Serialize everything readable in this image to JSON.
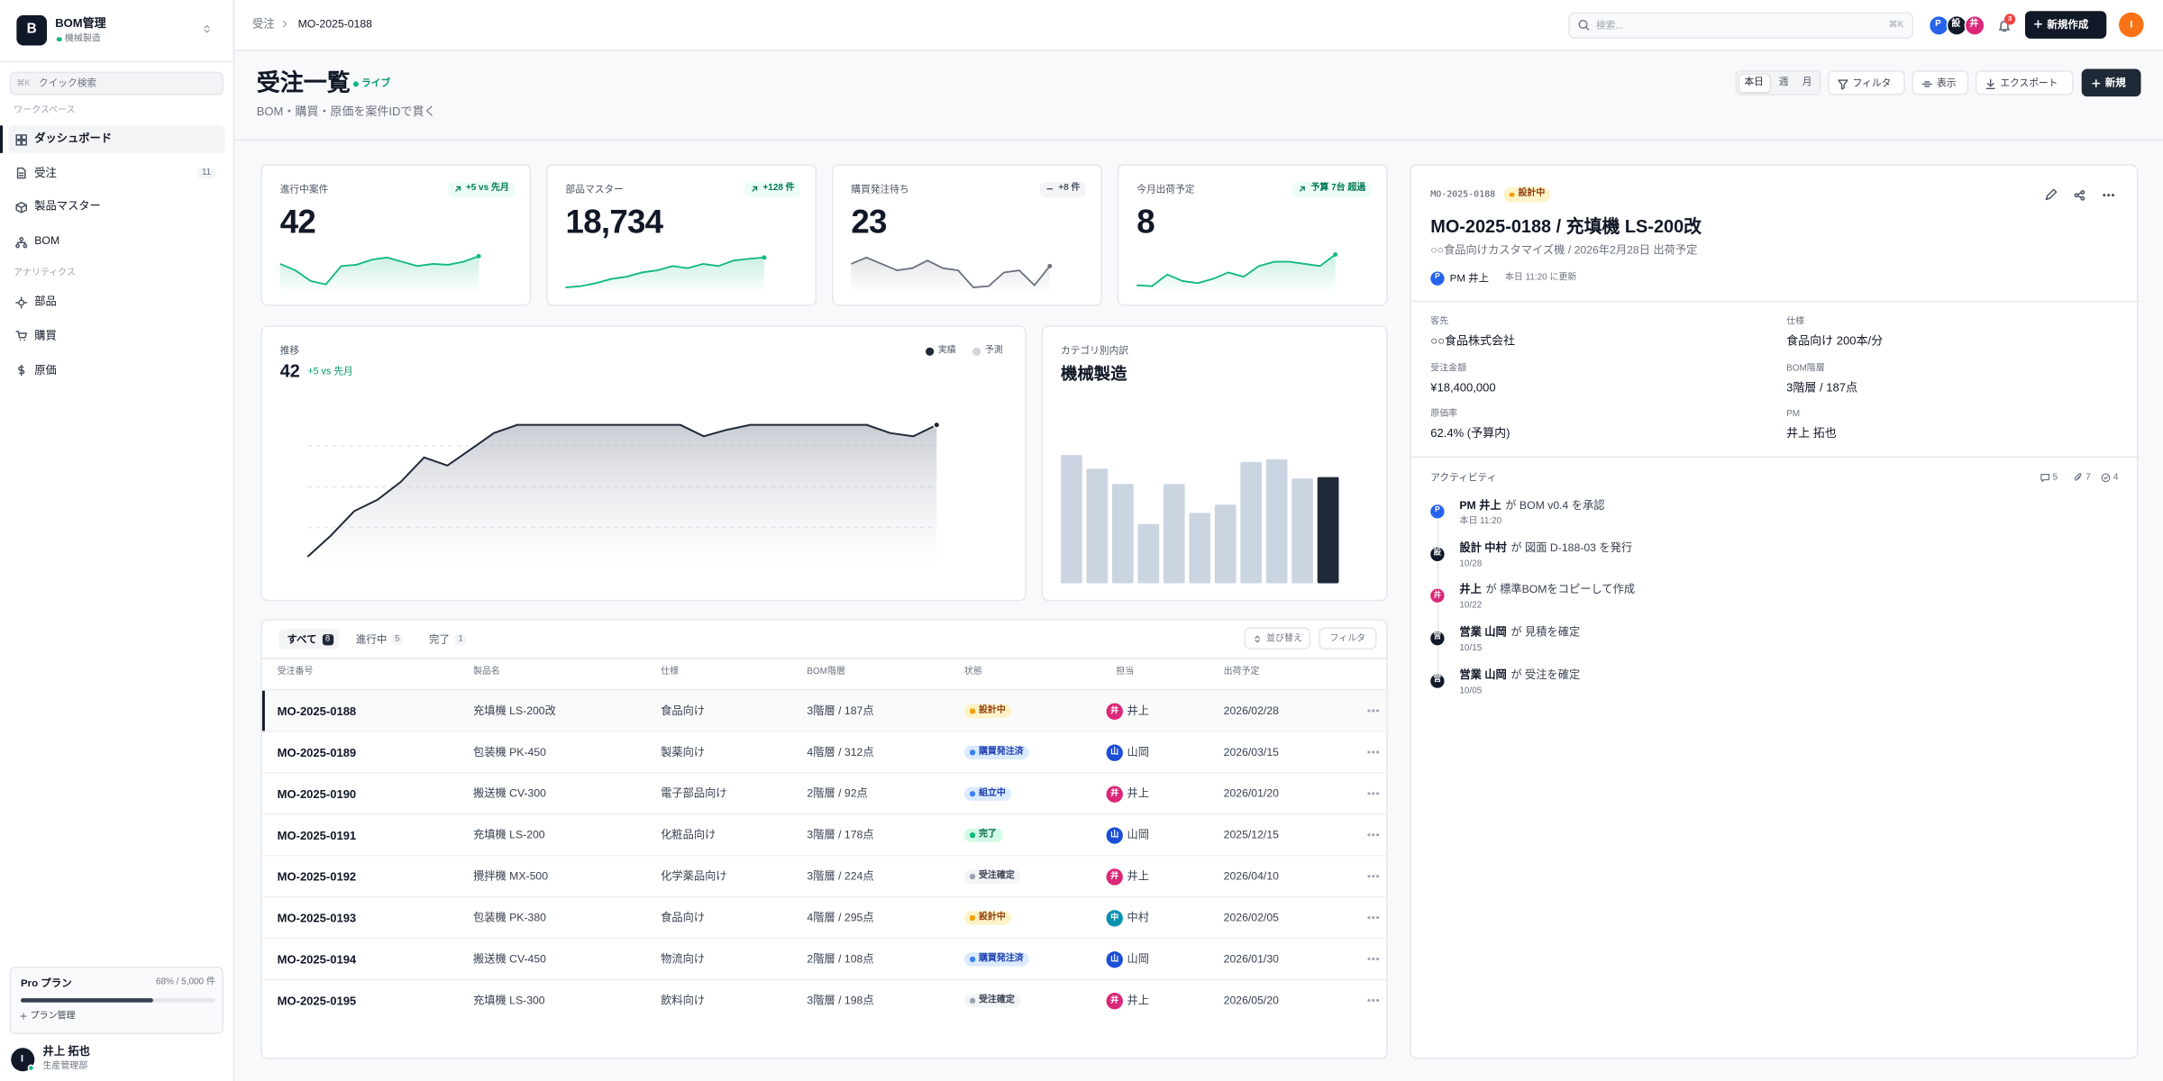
{
  "sidebar": {
    "logo": "B",
    "app_name": "BOM管理",
    "org": "機械製造",
    "quick_search": {
      "shortcut": "⌘K",
      "placeholder": "クイック検索"
    },
    "sections": [
      {
        "label": "ワークスペース",
        "items": [
          {
            "label": "ダッシュボード",
            "active": true
          },
          {
            "label": "受注",
            "badge": 11
          },
          {
            "label": "製品マスター"
          },
          {
            "label": "BOM"
          }
        ]
      },
      {
        "label": "アナリティクス",
        "items": [
          {
            "label": "部品"
          },
          {
            "label": "購買"
          },
          {
            "label": "原価"
          }
        ]
      }
    ],
    "plan": {
      "name": "Pro プラン",
      "usage": "68% / 5,000 件",
      "percent": 68,
      "manage": "プラン管理"
    },
    "user": {
      "initial": "I",
      "name": "井上 拓也",
      "dept": "生産管理部"
    }
  },
  "topbar": {
    "breadcrumb": [
      "受注",
      "MO-2025-0188"
    ],
    "search": {
      "placeholder": "検索...",
      "shortcut": "⌘K"
    },
    "avatars": [
      {
        "initial": "P",
        "color": "#2563eb"
      },
      {
        "initial": "設",
        "color": "#111827"
      },
      {
        "initial": "井",
        "color": "#db2777"
      }
    ],
    "notifications": 3,
    "create_button": "新規作成",
    "user_initial": "I"
  },
  "header": {
    "title": "受注一覧",
    "live": "ライブ",
    "subtitle": "BOM・購買・原価を案件IDで貫く",
    "periods": [
      {
        "label": "本日",
        "active": true
      },
      {
        "label": "週"
      },
      {
        "label": "月"
      }
    ],
    "buttons": [
      "フィルタ",
      "表示",
      "エクスポート"
    ],
    "new_button": "新規"
  },
  "kpis": [
    {
      "label": "進行中案件",
      "value": 42,
      "delta": "+5 vs 先月",
      "trend": "up",
      "spark": [
        60,
        45,
        20,
        12,
        55,
        58,
        70,
        75,
        65,
        55,
        60,
        58,
        65,
        78
      ]
    },
    {
      "label": "部品マスター",
      "value": "18,734",
      "delta": "+128 件",
      "trend": "up",
      "spark": [
        5,
        8,
        15,
        25,
        30,
        40,
        45,
        55,
        50,
        60,
        55,
        68,
        72,
        75
      ]
    },
    {
      "label": "購買発注待ち",
      "value": 23,
      "delta": "+8 件",
      "trend": "flat",
      "spark": [
        60,
        75,
        60,
        45,
        50,
        68,
        50,
        45,
        5,
        8,
        40,
        45,
        10,
        55
      ]
    },
    {
      "label": "今月出荷予定",
      "value": 8,
      "delta": "予算 7台 超過",
      "trend": "up",
      "spark": [
        10,
        8,
        35,
        20,
        15,
        25,
        40,
        30,
        55,
        65,
        65,
        60,
        55,
        82
      ]
    }
  ],
  "trend_chart": {
    "type": "area",
    "label": "推移",
    "value": 42,
    "delta": "+5 vs 先月",
    "legend": [
      {
        "name": "実績",
        "color": "#1f2937"
      },
      {
        "name": "予測",
        "color": "#d1d5db"
      }
    ],
    "values": [
      7,
      20,
      35,
      42,
      53,
      68,
      63,
      73,
      83,
      88,
      88,
      88,
      88,
      88,
      88,
      88,
      88,
      81,
      85,
      88,
      88,
      88,
      88,
      88,
      88,
      83,
      81,
      88
    ],
    "ylim": [
      0,
      100
    ],
    "yticks": [
      25,
      50,
      75
    ],
    "grid": true
  },
  "category_chart": {
    "type": "bar",
    "label": "カテゴリ別内訳",
    "value": "機械製造",
    "values": [
      93,
      83,
      72,
      43,
      72,
      51,
      57,
      88,
      90,
      76,
      77
    ],
    "ylim": [
      0,
      100
    ],
    "color": "#cbd5e1",
    "highlight_color": "#1f2937",
    "highlight_index": 10
  },
  "table": {
    "tabs": [
      {
        "label": "すべて",
        "count": 8,
        "active": true
      },
      {
        "label": "進行中",
        "count": 5
      },
      {
        "label": "完了",
        "count": 1
      }
    ],
    "actions": [
      "並び替え",
      "フィルタ"
    ],
    "columns": [
      "受注番号",
      "製品名",
      "仕様",
      "BOM階層",
      "状態",
      "担当",
      "出荷予定"
    ],
    "selected": 0,
    "status_styles": {
      "設計中": {
        "bg": "#fef3c7",
        "fg": "#92400e",
        "dot": "#f59e0b"
      },
      "購買発注済": {
        "bg": "#dbeafe",
        "fg": "#1e40af",
        "dot": "#3b82f6"
      },
      "組立中": {
        "bg": "#dbeafe",
        "fg": "#1e40af",
        "dot": "#3b82f6"
      },
      "完了": {
        "bg": "#d1fae5",
        "fg": "#065f46",
        "dot": "#10b981"
      },
      "受注確定": {
        "bg": "#f3f4f6",
        "fg": "#374151",
        "dot": "#9ca3af"
      }
    },
    "rows": [
      {
        "id": "MO-2025-0188",
        "product": "充填機 LS-200改",
        "spec": "食品向け",
        "bom": "3階層 / 187点",
        "status": "設計中",
        "owner_initial": "井",
        "owner_color": "#db2777",
        "owner": "井上",
        "ship": "2026/02/28"
      },
      {
        "id": "MO-2025-0189",
        "product": "包装機 PK-450",
        "spec": "製薬向け",
        "bom": "4階層 / 312点",
        "status": "購買発注済",
        "owner_initial": "山",
        "owner_color": "#1d4ed8",
        "owner": "山岡",
        "ship": "2026/03/15"
      },
      {
        "id": "MO-2025-0190",
        "product": "搬送機 CV-300",
        "spec": "電子部品向け",
        "bom": "2階層 / 92点",
        "status": "組立中",
        "owner_initial": "井",
        "owner_color": "#db2777",
        "owner": "井上",
        "ship": "2026/01/20"
      },
      {
        "id": "MO-2025-0191",
        "product": "充填機 LS-200",
        "spec": "化粧品向け",
        "bom": "3階層 / 178点",
        "status": "完了",
        "owner_initial": "山",
        "owner_color": "#1d4ed8",
        "owner": "山岡",
        "ship": "2025/12/15"
      },
      {
        "id": "MO-2025-0192",
        "product": "攪拌機 MX-500",
        "spec": "化学薬品向け",
        "bom": "3階層 / 224点",
        "status": "受注確定",
        "owner_initial": "井",
        "owner_color": "#db2777",
        "owner": "井上",
        "ship": "2026/04/10"
      },
      {
        "id": "MO-2025-0193",
        "product": "包装機 PK-380",
        "spec": "食品向け",
        "bom": "4階層 / 295点",
        "status": "設計中",
        "owner_initial": "中",
        "owner_color": "#0891b2",
        "owner": "中村",
        "ship": "2026/02/05"
      },
      {
        "id": "MO-2025-0194",
        "product": "搬送機 CV-450",
        "spec": "物流向け",
        "bom": "2階層 / 108点",
        "status": "購買発注済",
        "owner_initial": "山",
        "owner_color": "#1d4ed8",
        "owner": "山岡",
        "ship": "2026/01/30"
      },
      {
        "id": "MO-2025-0195",
        "product": "充填機 LS-300",
        "spec": "飲料向け",
        "bom": "3階層 / 198点",
        "status": "受注確定",
        "owner_initial": "井",
        "owner_color": "#db2777",
        "owner": "井上",
        "ship": "2026/05/20"
      }
    ]
  },
  "detail": {
    "id": "MO-2025-0188",
    "status": "設計中",
    "title": "MO-2025-0188 / 充填機 LS-200改",
    "subtitle": "○○食品向けカスタマイズ機 / 2026年2月28日 出荷予定",
    "owner_initial": "P",
    "owner": "PM 井上",
    "updated": "本日 11:20 に更新",
    "fields": [
      {
        "label": "客先",
        "value": "○○食品株式会社"
      },
      {
        "label": "仕様",
        "value": "食品向け 200本/分"
      },
      {
        "label": "受注金額",
        "value": "¥18,400,000"
      },
      {
        "label": "BOM階層",
        "value": "3階層 / 187点"
      },
      {
        "label": "原価率",
        "value": "62.4% (予算内)"
      },
      {
        "label": "PM",
        "value": "井上 拓也"
      }
    ],
    "activity_title": "アクティビティ",
    "counts": {
      "comments": 5,
      "attachments": 7,
      "tasks": 4
    },
    "activities": [
      {
        "initial": "P",
        "color": "#2563eb",
        "actor": "PM 井上",
        "text": "が BOM v0.4 を承認",
        "date": "本日 11:20"
      },
      {
        "initial": "設",
        "color": "#111827",
        "actor": "設計 中村",
        "text": "が 図面 D-188-03 を発行",
        "date": "10/28"
      },
      {
        "initial": "井",
        "color": "#db2777",
        "actor": "井上",
        "text": "が 標準BOMをコピーして作成",
        "date": "10/22"
      },
      {
        "initial": "営",
        "color": "#111827",
        "actor": "営業 山岡",
        "text": "が 見積を確定",
        "date": "10/15"
      },
      {
        "initial": "営",
        "color": "#111827",
        "actor": "営業 山岡",
        "text": "が 受注を確定",
        "date": "10/05"
      }
    ]
  }
}
